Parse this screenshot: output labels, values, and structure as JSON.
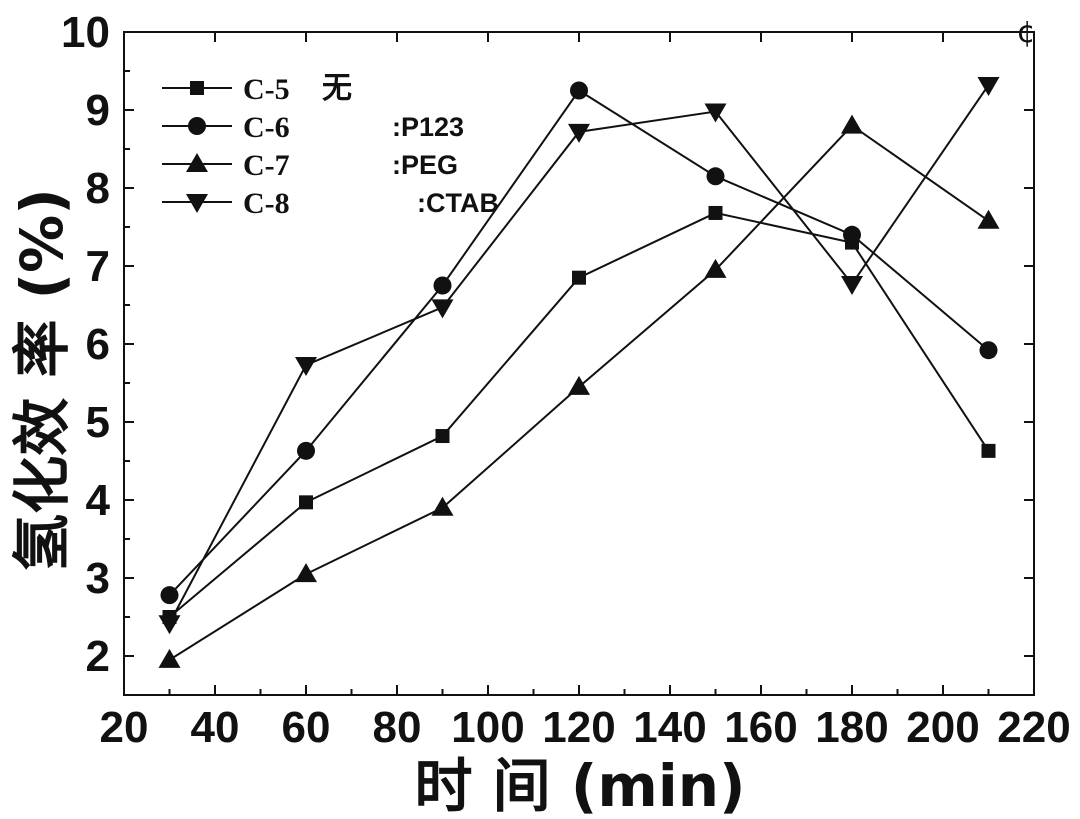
{
  "chart_data": {
    "type": "line",
    "xlabel": "时 间 (min)",
    "ylabel": "氢化效 率 (%)",
    "xlim": [
      20,
      220
    ],
    "ylim": [
      1.5,
      10
    ],
    "xticks": [
      20,
      40,
      60,
      80,
      100,
      120,
      140,
      160,
      180,
      200,
      220
    ],
    "yticks": [
      2,
      3,
      4,
      5,
      6,
      7,
      8,
      9,
      10
    ],
    "x": [
      30,
      60,
      90,
      120,
      150,
      180,
      210
    ],
    "series": [
      {
        "name": "C-5",
        "note": "无",
        "marker": "square",
        "values": [
          2.5,
          3.97,
          4.82,
          6.85,
          7.68,
          7.3,
          4.63
        ]
      },
      {
        "name": "C-6",
        "note": ":P123",
        "marker": "circle",
        "values": [
          2.78,
          4.63,
          6.75,
          9.25,
          8.15,
          7.4,
          5.92
        ]
      },
      {
        "name": "C-7",
        "note": ":PEG",
        "marker": "triangle-up",
        "values": [
          1.95,
          3.05,
          3.9,
          5.45,
          6.95,
          8.8,
          7.58
        ]
      },
      {
        "name": "C-8",
        "note": ":CTAB",
        "marker": "triangle-down",
        "values": [
          2.42,
          5.73,
          6.47,
          8.72,
          8.98,
          6.77,
          9.32
        ]
      }
    ],
    "legend_position": "top-left",
    "grid": false,
    "line_color": "#111111",
    "corner_mark": "¢"
  }
}
